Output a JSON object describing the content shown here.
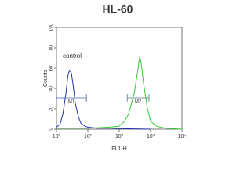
{
  "chart_data": {
    "type": "line",
    "title": "HL-60",
    "x_label": "FL1-H",
    "y_label": "Counts",
    "annotation": "control",
    "xscale": "log",
    "xlim": [
      1,
      10000
    ],
    "xticks": [
      {
        "value": 1,
        "label": "10⁰"
      },
      {
        "value": 10,
        "label": "10¹"
      },
      {
        "value": 100,
        "label": "10²"
      },
      {
        "value": 1000,
        "label": "10³"
      },
      {
        "value": 10000,
        "label": "10⁴"
      }
    ],
    "ylim": [
      0,
      100
    ],
    "yticks": [
      0,
      20,
      40,
      60,
      80,
      100
    ],
    "series": [
      {
        "color": "#2233aa",
        "x": [
          1,
          1.3,
          1.6,
          2,
          2.3,
          2.6,
          3,
          3.5,
          4,
          5,
          6,
          8,
          10,
          20,
          50,
          100,
          1000
        ],
        "values": [
          2,
          5,
          15,
          35,
          52,
          58,
          55,
          40,
          25,
          12,
          6,
          3,
          2,
          1,
          1,
          0.5,
          0
        ]
      },
      {
        "color": "#33cc33",
        "x": [
          1,
          10,
          50,
          100,
          150,
          200,
          300,
          400,
          450,
          500,
          600,
          800,
          1000,
          1500,
          3000,
          10000
        ],
        "values": [
          1,
          1,
          2,
          3,
          8,
          15,
          35,
          60,
          71,
          65,
          45,
          20,
          8,
          3,
          1,
          0
        ]
      }
    ],
    "gates": [
      {
        "label": "M1",
        "range": [
          1,
          9
        ],
        "color": "#4a5fb0"
      },
      {
        "label": "M2",
        "range": [
          180,
          890
        ],
        "color": "#4a7f8a"
      }
    ]
  }
}
